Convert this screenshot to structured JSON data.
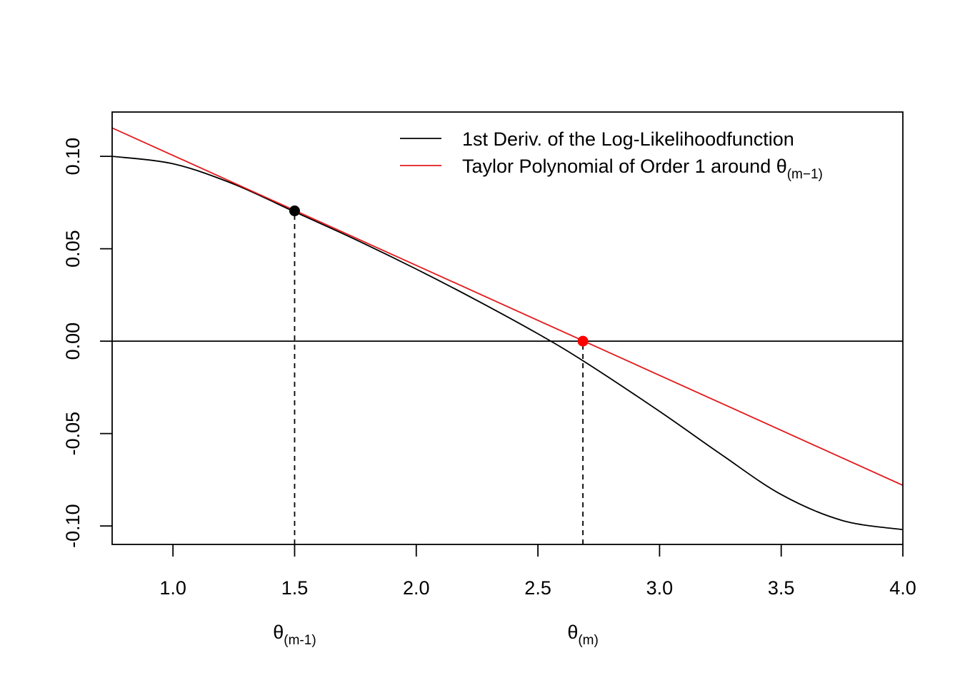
{
  "chart_data": {
    "type": "line",
    "title": "",
    "xlabel": "",
    "ylabel": "",
    "xlim": [
      0.75,
      4.0
    ],
    "ylim": [
      -0.11,
      0.124
    ],
    "x_ticks": [
      {
        "value": 1.0,
        "label": "1.0"
      },
      {
        "value": 1.5,
        "label": "1.5"
      },
      {
        "value": 2.0,
        "label": "2.0"
      },
      {
        "value": 2.5,
        "label": "2.5"
      },
      {
        "value": 3.0,
        "label": "3.0"
      },
      {
        "value": 3.5,
        "label": "3.5"
      },
      {
        "value": 4.0,
        "label": "4.0"
      }
    ],
    "y_ticks": [
      {
        "value": 0.1,
        "label": "0.10"
      },
      {
        "value": 0.05,
        "label": "0.05"
      },
      {
        "value": 0.0,
        "label": "0.00"
      },
      {
        "value": -0.05,
        "label": "-0.05"
      },
      {
        "value": -0.1,
        "label": "-0.10"
      }
    ],
    "grid": false,
    "legend_position": "top-right",
    "series": [
      {
        "name": "1st Deriv. of the Log-Likelihoodfunction",
        "color": "#000000",
        "x": [
          0.75,
          1.0,
          1.25,
          1.5,
          1.75,
          2.0,
          2.25,
          2.5,
          2.69,
          3.0,
          3.25,
          3.5,
          3.75,
          4.0
        ],
        "y": [
          0.1,
          0.096,
          0.085,
          0.07,
          0.055,
          0.039,
          0.022,
          0.004,
          -0.011,
          -0.038,
          -0.061,
          -0.083,
          -0.097,
          -0.102
        ]
      },
      {
        "name": "Taylor Polynomial of Order 1 around θ(m−1)",
        "color": "#e31a1c",
        "x": [
          0.75,
          4.0
        ],
        "y": [
          0.1154,
          -0.078
        ]
      }
    ],
    "hline_y": 0,
    "points": [
      {
        "x": 1.5,
        "y": 0.0705,
        "color": "#000000"
      },
      {
        "x": 2.685,
        "y": 0.0,
        "color": "#ff0000"
      }
    ],
    "vlines": [
      {
        "x": 1.5,
        "y_from": -0.11,
        "y_to": 0.0705
      },
      {
        "x": 2.685,
        "y_from": -0.11,
        "y_to": 0.0
      }
    ],
    "legend": [
      {
        "text": "1st Deriv. of the Log-Likelihoodfunction",
        "color": "#000000"
      },
      {
        "text": "Taylor Polynomial of Order 1 around θ",
        "sub": "(m−1)",
        "color": "#e31a1c"
      }
    ],
    "annotations": [
      {
        "x": 1.5,
        "text": "θ",
        "sub": "(m-1)"
      },
      {
        "x": 2.685,
        "text": "θ",
        "sub": "(m)"
      }
    ]
  }
}
